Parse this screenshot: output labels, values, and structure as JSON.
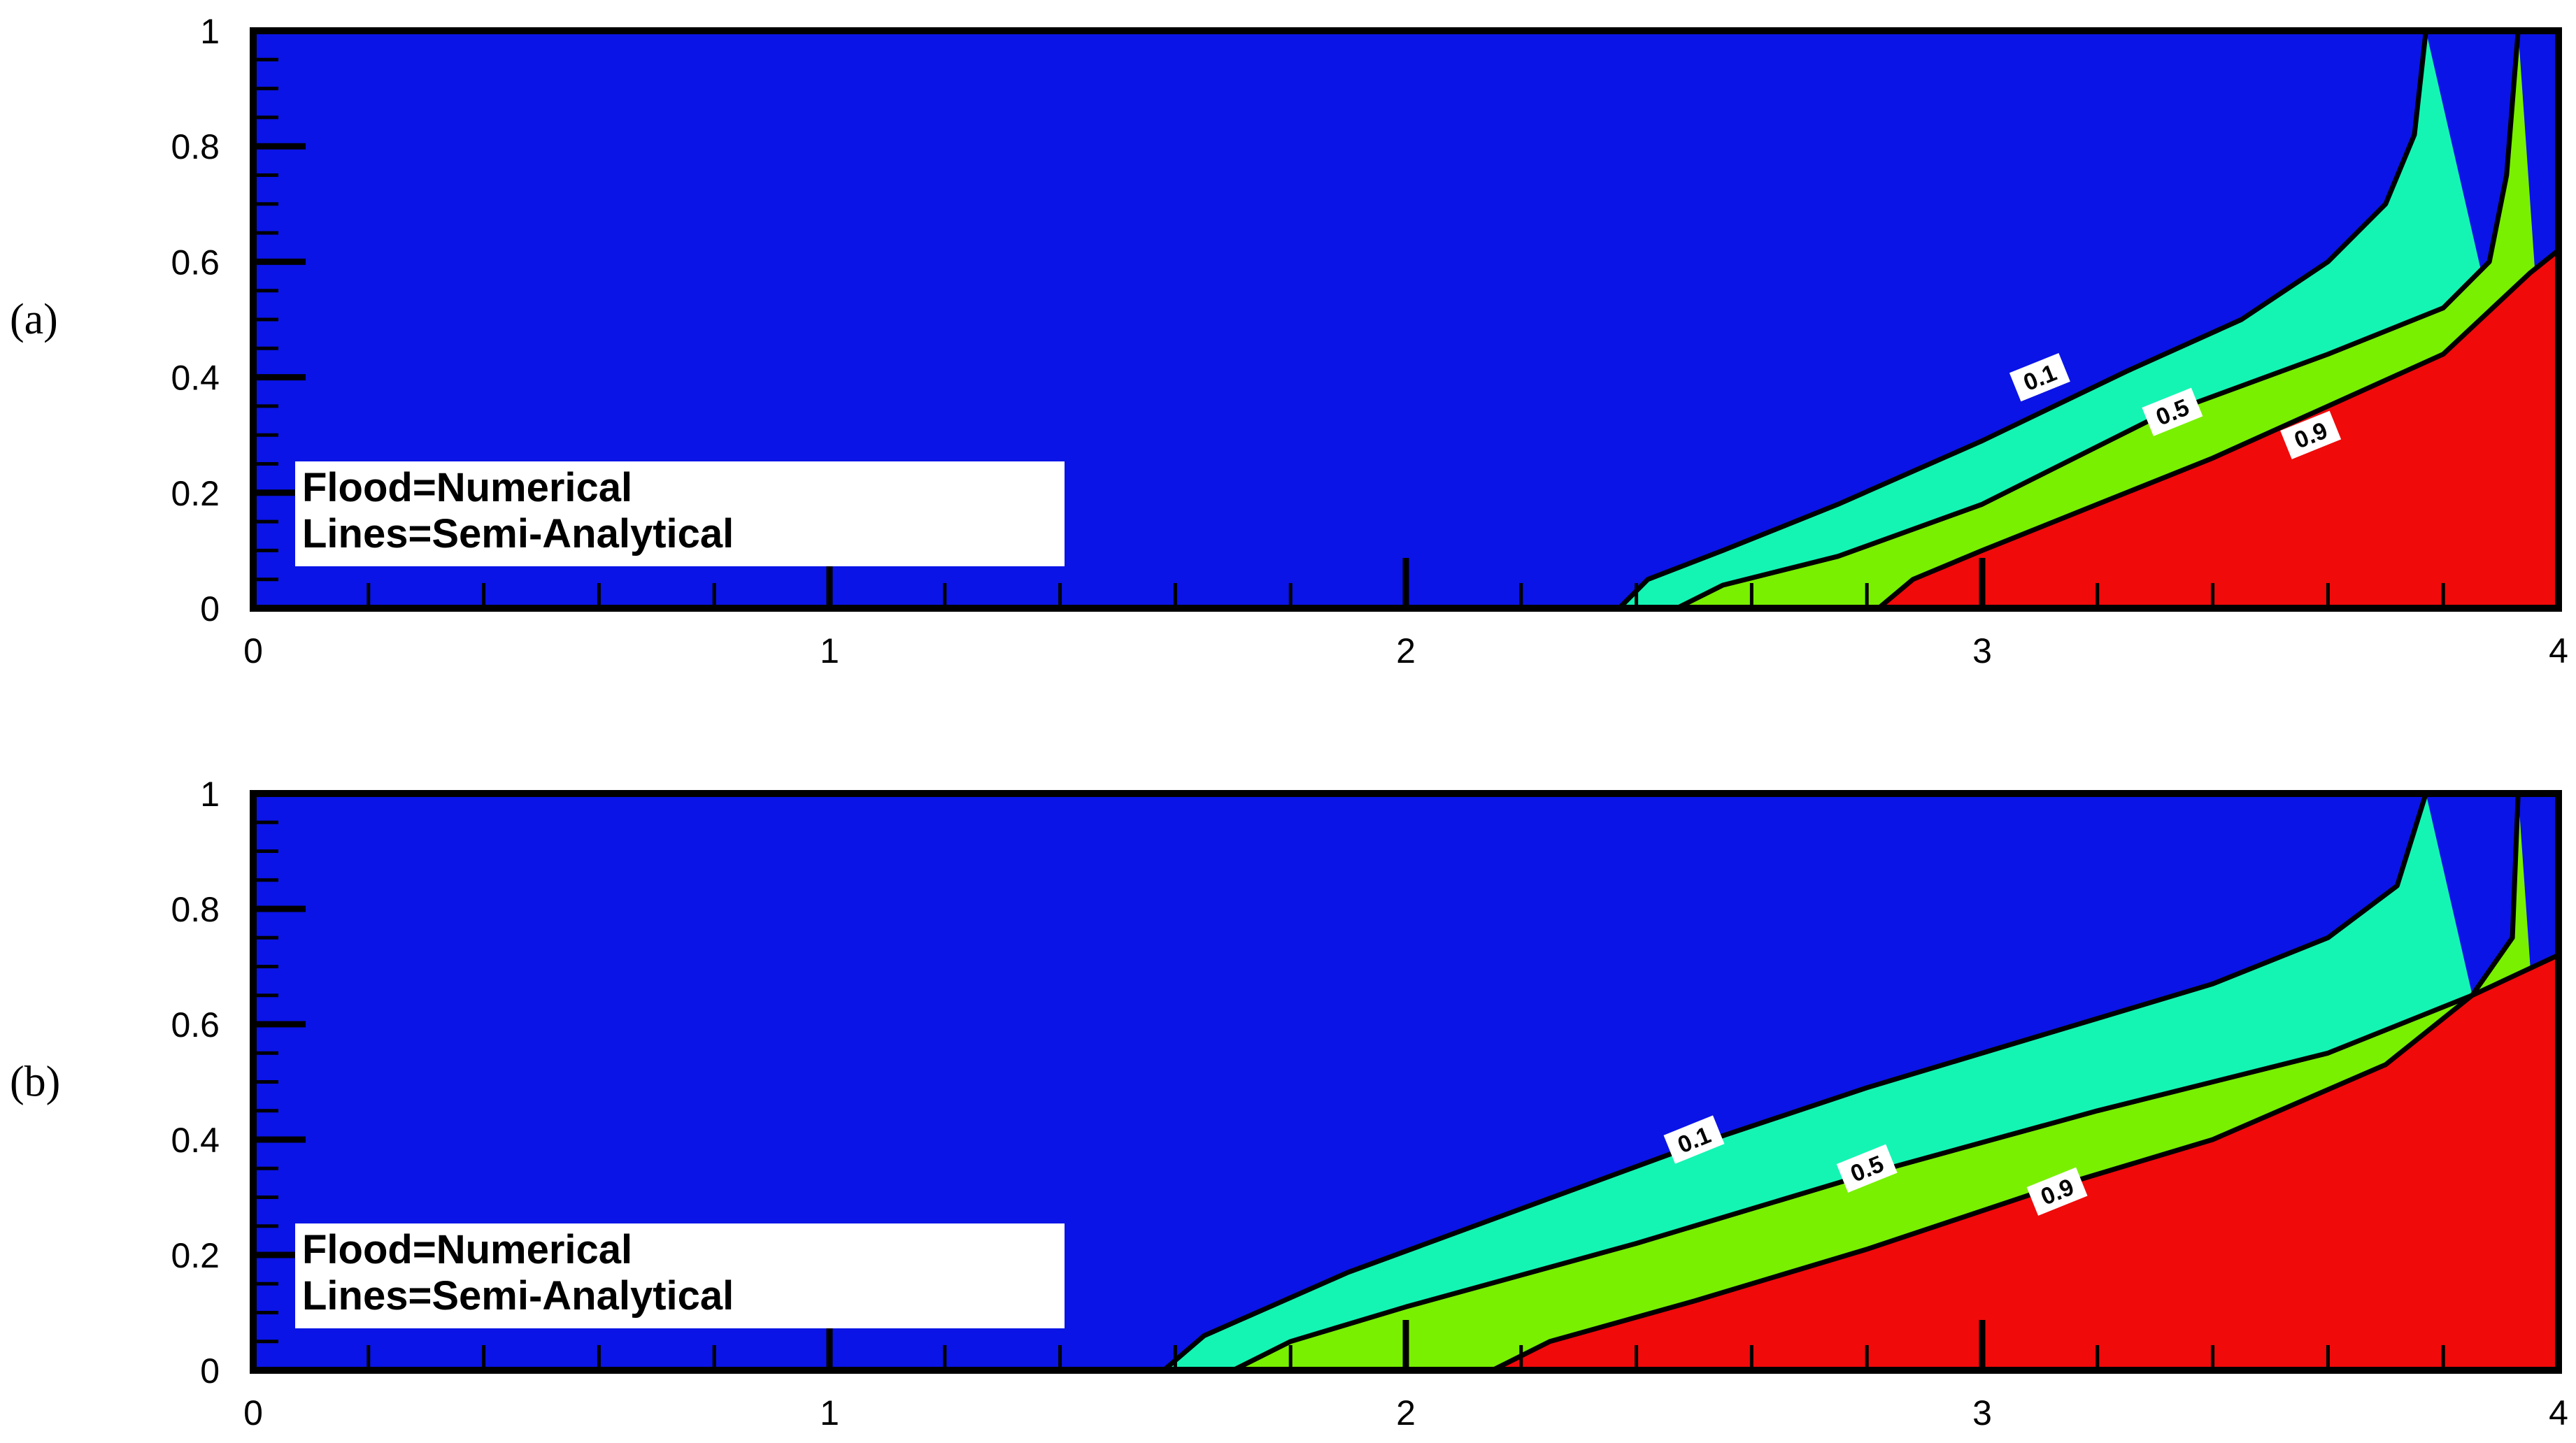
{
  "chart_data": [
    {
      "type": "contour",
      "panel_label": "(a)",
      "xlim": [
        0,
        4
      ],
      "ylim": [
        0,
        1
      ],
      "x_ticks": [
        "0",
        "1",
        "2",
        "3",
        "4"
      ],
      "y_ticks": [
        "0",
        "0.2",
        "0.4",
        "0.6",
        "0.8",
        "1"
      ],
      "legend": [
        "Flood=Numerical",
        "Lines=Semi-Analytical"
      ],
      "flood_colors": [
        "#0a14e6",
        "#14f5b4",
        "#78f000",
        "#f00a0a"
      ],
      "contours": [
        {
          "level": "0.1",
          "label": {
            "x": 3.1,
            "y": 0.4
          },
          "points": [
            [
              2.37,
              0
            ],
            [
              2.42,
              0.05
            ],
            [
              2.55,
              0.1
            ],
            [
              2.75,
              0.18
            ],
            [
              3.0,
              0.29
            ],
            [
              3.25,
              0.41
            ],
            [
              3.45,
              0.5
            ],
            [
              3.6,
              0.6
            ],
            [
              3.7,
              0.7
            ],
            [
              3.75,
              0.82
            ],
            [
              3.77,
              1.0
            ]
          ]
        },
        {
          "level": "0.5",
          "label": {
            "x": 3.33,
            "y": 0.34
          },
          "points": [
            [
              2.47,
              0
            ],
            [
              2.55,
              0.04
            ],
            [
              2.75,
              0.09
            ],
            [
              3.0,
              0.18
            ],
            [
              3.3,
              0.33
            ],
            [
              3.6,
              0.44
            ],
            [
              3.8,
              0.52
            ],
            [
              3.88,
              0.6
            ],
            [
              3.91,
              0.75
            ],
            [
              3.93,
              1.0
            ]
          ]
        },
        {
          "level": "0.9",
          "label": {
            "x": 3.57,
            "y": 0.3
          },
          "points": [
            [
              2.82,
              0
            ],
            [
              2.88,
              0.05
            ],
            [
              3.0,
              0.1
            ],
            [
              3.2,
              0.18
            ],
            [
              3.4,
              0.26
            ],
            [
              3.6,
              0.35
            ],
            [
              3.8,
              0.44
            ],
            [
              3.95,
              0.58
            ],
            [
              4.0,
              0.62
            ]
          ]
        }
      ]
    },
    {
      "type": "contour",
      "panel_label": "(b)",
      "xlim": [
        0,
        4
      ],
      "ylim": [
        0,
        1
      ],
      "x_ticks": [
        "0",
        "1",
        "2",
        "3",
        "4"
      ],
      "y_ticks": [
        "0",
        "0.2",
        "0.4",
        "0.6",
        "0.8",
        "1"
      ],
      "legend": [
        "Flood=Numerical",
        "Lines=Semi-Analytical"
      ],
      "flood_colors": [
        "#0a14e6",
        "#14f5b4",
        "#78f000",
        "#f00a0a"
      ],
      "contours": [
        {
          "level": "0.1",
          "label": {
            "x": 2.5,
            "y": 0.4
          },
          "points": [
            [
              1.58,
              0
            ],
            [
              1.65,
              0.06
            ],
            [
              1.9,
              0.17
            ],
            [
              2.2,
              0.28
            ],
            [
              2.5,
              0.39
            ],
            [
              2.8,
              0.49
            ],
            [
              3.1,
              0.58
            ],
            [
              3.4,
              0.67
            ],
            [
              3.6,
              0.75
            ],
            [
              3.72,
              0.84
            ],
            [
              3.77,
              1.0
            ]
          ]
        },
        {
          "level": "0.5",
          "label": {
            "x": 2.8,
            "y": 0.35
          },
          "points": [
            [
              1.7,
              0
            ],
            [
              1.8,
              0.05
            ],
            [
              2.0,
              0.11
            ],
            [
              2.4,
              0.22
            ],
            [
              2.8,
              0.34
            ],
            [
              3.2,
              0.45
            ],
            [
              3.6,
              0.55
            ],
            [
              3.85,
              0.65
            ],
            [
              3.92,
              0.75
            ],
            [
              3.93,
              1.0
            ]
          ]
        },
        {
          "level": "0.9",
          "label": {
            "x": 3.13,
            "y": 0.31
          },
          "points": [
            [
              2.15,
              0
            ],
            [
              2.25,
              0.05
            ],
            [
              2.5,
              0.12
            ],
            [
              2.8,
              0.21
            ],
            [
              3.1,
              0.31
            ],
            [
              3.4,
              0.4
            ],
            [
              3.7,
              0.53
            ],
            [
              3.85,
              0.65
            ],
            [
              4.0,
              0.72
            ]
          ]
        }
      ]
    }
  ]
}
